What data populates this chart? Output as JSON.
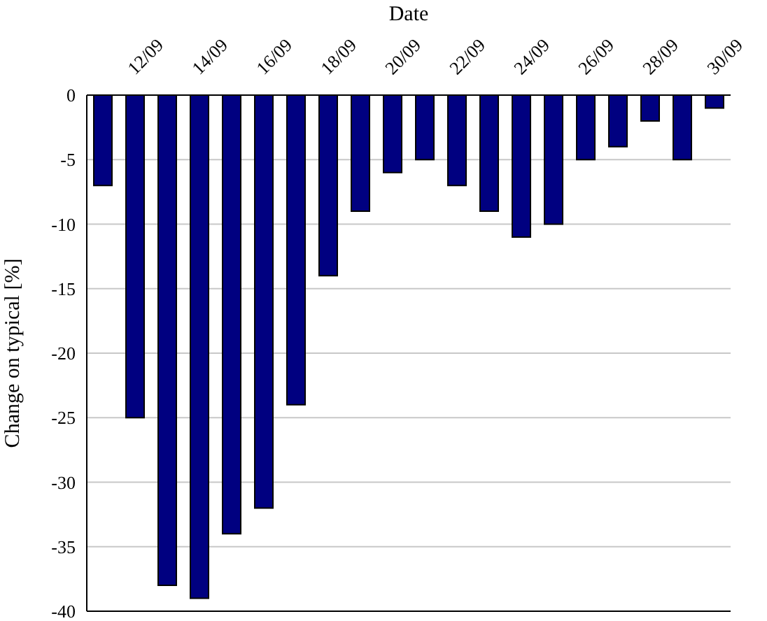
{
  "chart_data": {
    "type": "bar",
    "xlabel": "Date",
    "ylabel": "Change on typical [%]",
    "categories": [
      null,
      "12/09",
      null,
      "14/09",
      null,
      "16/09",
      null,
      "18/09",
      null,
      "20/09",
      null,
      "22/09",
      null,
      "24/09",
      null,
      "26/09",
      null,
      "28/09",
      null,
      "30/09"
    ],
    "values": [
      -7,
      -25,
      -38,
      -39,
      -34,
      -32,
      -24,
      -14,
      -9,
      -6,
      -5,
      -7,
      -9,
      -11,
      -10,
      -5,
      -4,
      -2,
      -5,
      -1
    ],
    "color": "#000080",
    "ylim": [
      -40,
      0
    ],
    "yticks": [
      -40,
      -35,
      -30,
      -25,
      -20,
      -15,
      -10,
      -5,
      0
    ],
    "grid": "y"
  }
}
